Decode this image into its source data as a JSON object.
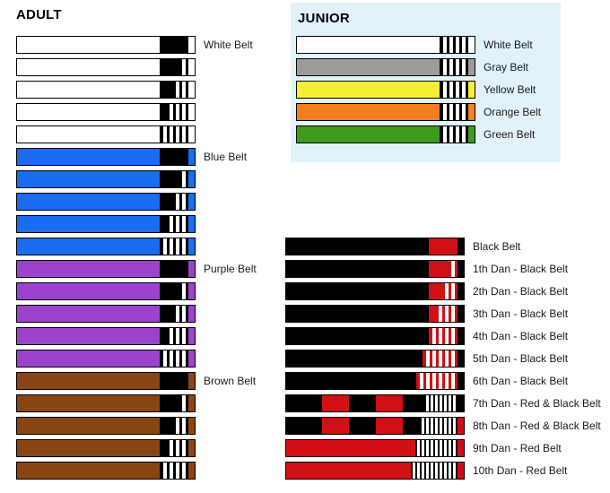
{
  "sections": {
    "adult": {
      "title": "ADULT"
    },
    "junior": {
      "title": "JUNIOR",
      "panel_color": "#e2f2fa"
    }
  },
  "colors": {
    "black": "#000000",
    "white": "#ffffff",
    "red": "#d10f14",
    "blue": "#1a6cf0",
    "purple": "#9b44cb",
    "brown": "#8a4513",
    "gray": "#9c9c9c",
    "yellow": "#f7ef35",
    "orange": "#f67d1e",
    "green": "#3e9b1c"
  },
  "adult_belts": [
    {
      "label": "White Belt",
      "belt": "white",
      "stripes": 0
    },
    {
      "label": "",
      "belt": "white",
      "stripes": 1
    },
    {
      "label": "",
      "belt": "white",
      "stripes": 2
    },
    {
      "label": "",
      "belt": "white",
      "stripes": 3
    },
    {
      "label": "",
      "belt": "white",
      "stripes": 4
    },
    {
      "label": "Blue Belt",
      "belt": "blue",
      "stripes": 0
    },
    {
      "label": "",
      "belt": "blue",
      "stripes": 1
    },
    {
      "label": "",
      "belt": "blue",
      "stripes": 2
    },
    {
      "label": "",
      "belt": "blue",
      "stripes": 3
    },
    {
      "label": "",
      "belt": "blue",
      "stripes": 4
    },
    {
      "label": "Purple Belt",
      "belt": "purple",
      "stripes": 0
    },
    {
      "label": "",
      "belt": "purple",
      "stripes": 1
    },
    {
      "label": "",
      "belt": "purple",
      "stripes": 2
    },
    {
      "label": "",
      "belt": "purple",
      "stripes": 3
    },
    {
      "label": "",
      "belt": "purple",
      "stripes": 4
    },
    {
      "label": "Brown Belt",
      "belt": "brown",
      "stripes": 0
    },
    {
      "label": "",
      "belt": "brown",
      "stripes": 1
    },
    {
      "label": "",
      "belt": "brown",
      "stripes": 2
    },
    {
      "label": "",
      "belt": "brown",
      "stripes": 3
    },
    {
      "label": "",
      "belt": "brown",
      "stripes": 4
    }
  ],
  "junior_belts": [
    {
      "label": "White Belt",
      "belt": "white",
      "stripes": 4
    },
    {
      "label": "Gray Belt",
      "belt": "gray",
      "stripes": 4
    },
    {
      "label": "Yellow Belt",
      "belt": "yellow",
      "stripes": 4
    },
    {
      "label": "Orange Belt",
      "belt": "orange",
      "stripes": 4
    },
    {
      "label": "Green Belt",
      "belt": "green",
      "stripes": 4
    }
  ],
  "black_belts": [
    {
      "label": "Black Belt",
      "belt": "black",
      "bar": "red",
      "stripes": 0,
      "tip": "black"
    },
    {
      "label": "1th Dan - Black Belt",
      "belt": "black",
      "bar": "red",
      "stripes": 1,
      "tip": "black"
    },
    {
      "label": "2th Dan - Black Belt",
      "belt": "black",
      "bar": "red",
      "stripes": 2,
      "tip": "black"
    },
    {
      "label": "3th Dan - Black Belt",
      "belt": "black",
      "bar": "red",
      "stripes": 3,
      "tip": "black"
    },
    {
      "label": "4th Dan - Black Belt",
      "belt": "black",
      "bar": "red",
      "stripes": 4,
      "tip": "black"
    },
    {
      "label": "5th Dan - Black Belt",
      "belt": "black",
      "bar": "red",
      "stripes": 5,
      "tip": "black"
    },
    {
      "label": "6th Dan - Black Belt",
      "belt": "black",
      "bar": "red",
      "stripes": 6,
      "tip": "black"
    },
    {
      "label": "7th Dan - Red & Black Belt",
      "belt": "black",
      "blocks": "red",
      "style": "dense",
      "stripes": 7,
      "tip": "black"
    },
    {
      "label": "8th Dan - Red & Black Belt",
      "belt": "black",
      "blocks": "red",
      "style": "dense",
      "stripes": 8,
      "tip": "red"
    },
    {
      "label": "9th Dan - Red Belt",
      "belt": "red",
      "style": "dense",
      "stripes": 9,
      "tip": "red"
    },
    {
      "label": "10th Dan - Red Belt",
      "belt": "red",
      "style": "dense",
      "stripes": 10,
      "tip": "red"
    }
  ]
}
